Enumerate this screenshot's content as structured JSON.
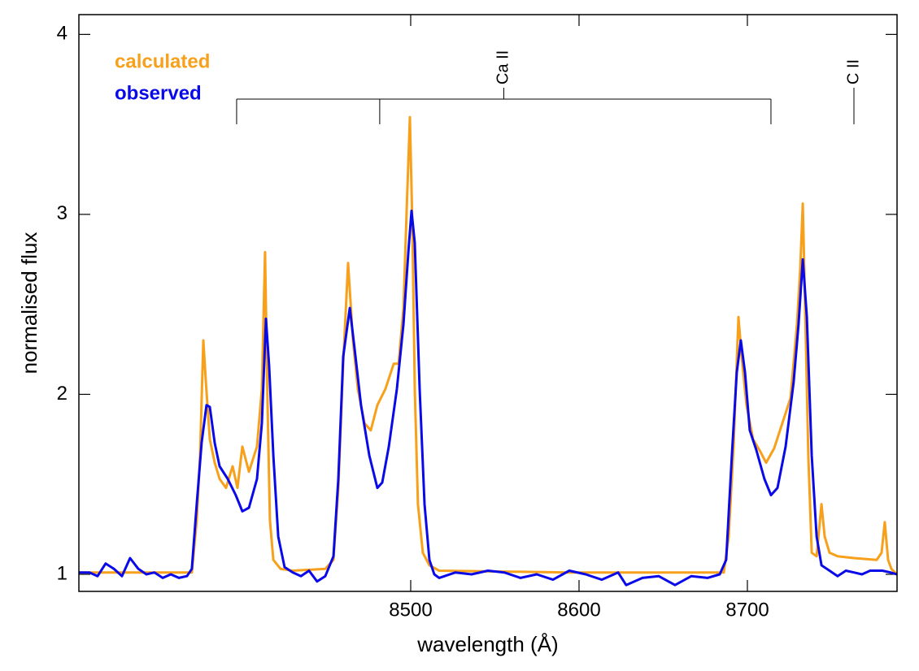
{
  "chart_data": {
    "type": "line",
    "x_label": "wavelength (Å)",
    "y_label": "normalised flux",
    "xlim": [
      8302.9,
      8788.9
    ],
    "ylim": [
      0.905,
      4.11
    ],
    "xticks": [
      8500,
      8600,
      8700
    ],
    "yticks": [
      1,
      2,
      3,
      4
    ],
    "legend": "top-left",
    "annotations": [
      {
        "label": "Ca II",
        "x": [
          8396.6,
          8481.6,
          8714.0
        ]
      },
      {
        "label": "C II",
        "x": [
          8763.3
        ]
      }
    ],
    "series": [
      {
        "name": "calculated",
        "color": "#f7a01c",
        "x": [
          8302.9,
          8370.0,
          8372.9,
          8374.9,
          8376.8,
          8378.3,
          8380.7,
          8383.6,
          8386.5,
          8390.3,
          8394.2,
          8397.1,
          8400.0,
          8403.9,
          8408.7,
          8411.6,
          8413.5,
          8415.0,
          8416.4,
          8418.4,
          8422.7,
          8430.0,
          8449.3,
          8454.1,
          8457.0,
          8459.9,
          8462.8,
          8465.7,
          8468.6,
          8472.5,
          8476.3,
          8480.2,
          8485.0,
          8489.9,
          8492.8,
          8495.7,
          8497.6,
          8499.5,
          8501.0,
          8502.4,
          8504.3,
          8507.2,
          8511.1,
          8516.9,
          8594.2,
          8686.0,
          8688.9,
          8691.8,
          8694.7,
          8696.6,
          8699.5,
          8703.4,
          8707.2,
          8711.1,
          8715.9,
          8720.8,
          8725.6,
          8729.5,
          8731.4,
          8732.9,
          8734.3,
          8736.2,
          8738.2,
          8741.1,
          8744.0,
          8745.9,
          8748.8,
          8753.6,
          8763.3,
          8776.8,
          8779.7,
          8781.6,
          8783.6,
          8785.5,
          8788.9
        ],
        "values": [
          1.01,
          1.01,
          1.3,
          1.66,
          2.3,
          2.07,
          1.75,
          1.62,
          1.53,
          1.48,
          1.6,
          1.48,
          1.71,
          1.57,
          1.71,
          2.03,
          2.79,
          1.94,
          1.3,
          1.08,
          1.03,
          1.02,
          1.03,
          1.08,
          1.48,
          2.17,
          2.73,
          2.3,
          2.03,
          1.84,
          1.8,
          1.94,
          2.03,
          2.17,
          2.17,
          2.48,
          3.02,
          3.54,
          2.93,
          2.03,
          1.39,
          1.12,
          1.05,
          1.02,
          1.01,
          1.01,
          1.21,
          1.71,
          2.43,
          2.21,
          1.94,
          1.75,
          1.69,
          1.62,
          1.7,
          1.84,
          1.98,
          2.39,
          2.7,
          3.06,
          2.48,
          1.66,
          1.12,
          1.1,
          1.39,
          1.21,
          1.12,
          1.1,
          1.09,
          1.08,
          1.12,
          1.29,
          1.08,
          1.03,
          1.0
        ]
      },
      {
        "name": "observed",
        "color": "#0a0ae8",
        "x": [
          8302.9,
          8309.2,
          8314.0,
          8318.8,
          8323.7,
          8328.5,
          8333.3,
          8338.2,
          8343.0,
          8347.8,
          8352.7,
          8357.5,
          8362.3,
          8367.1,
          8370.0,
          8372.9,
          8375.8,
          8378.7,
          8380.7,
          8383.6,
          8386.5,
          8391.3,
          8396.1,
          8400.0,
          8403.9,
          8408.7,
          8411.6,
          8414.0,
          8415.9,
          8418.4,
          8421.3,
          8425.1,
          8430.0,
          8434.8,
          8439.6,
          8444.4,
          8449.3,
          8454.1,
          8457.0,
          8459.9,
          8463.8,
          8466.7,
          8470.5,
          8475.4,
          8480.2,
          8483.1,
          8487.0,
          8491.8,
          8495.7,
          8498.6,
          8500.5,
          8502.4,
          8505.3,
          8508.2,
          8511.1,
          8514.0,
          8516.9,
          8526.6,
          8536.2,
          8545.9,
          8555.6,
          8565.2,
          8574.9,
          8584.5,
          8594.2,
          8603.9,
          8613.5,
          8623.2,
          8628.0,
          8637.7,
          8647.3,
          8657.0,
          8666.7,
          8676.3,
          8683.6,
          8687.4,
          8690.8,
          8693.7,
          8696.1,
          8698.6,
          8701.4,
          8705.3,
          8710.1,
          8714.0,
          8717.9,
          8722.7,
          8727.5,
          8730.4,
          8732.9,
          8735.3,
          8738.2,
          8741.1,
          8744.0,
          8748.8,
          8753.6,
          8758.5,
          8763.3,
          8768.1,
          8772.9,
          8780.2,
          8785.0,
          8788.9
        ],
        "values": [
          1.01,
          1.01,
          0.99,
          1.06,
          1.03,
          0.99,
          1.09,
          1.03,
          1.0,
          1.01,
          0.98,
          1.0,
          0.98,
          0.99,
          1.03,
          1.39,
          1.73,
          1.94,
          1.93,
          1.73,
          1.6,
          1.53,
          1.44,
          1.35,
          1.37,
          1.53,
          1.84,
          2.42,
          2.16,
          1.66,
          1.21,
          1.04,
          1.01,
          0.99,
          1.02,
          0.96,
          0.99,
          1.1,
          1.53,
          2.21,
          2.48,
          2.25,
          1.94,
          1.66,
          1.48,
          1.51,
          1.71,
          2.03,
          2.39,
          2.79,
          3.02,
          2.84,
          2.03,
          1.39,
          1.08,
          1.0,
          0.98,
          1.01,
          1.0,
          1.02,
          1.01,
          0.98,
          1.0,
          0.97,
          1.02,
          1.0,
          0.97,
          1.01,
          0.94,
          0.98,
          0.99,
          0.94,
          0.99,
          0.98,
          1.0,
          1.08,
          1.66,
          2.12,
          2.3,
          2.12,
          1.8,
          1.69,
          1.53,
          1.44,
          1.48,
          1.71,
          2.07,
          2.39,
          2.75,
          2.43,
          1.66,
          1.21,
          1.05,
          1.02,
          0.99,
          1.02,
          1.01,
          1.0,
          1.02,
          1.02,
          1.01,
          1.0
        ]
      }
    ]
  }
}
